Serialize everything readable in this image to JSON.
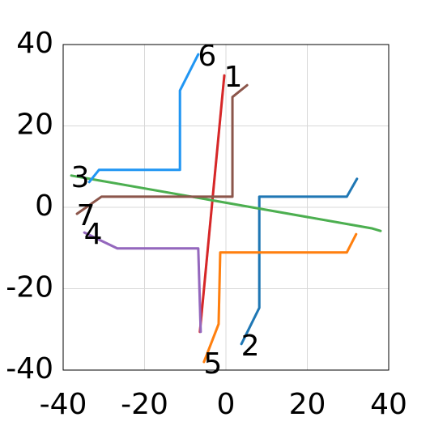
{
  "chart_data": {
    "type": "line",
    "xlim": [
      -40,
      40
    ],
    "ylim": [
      -40,
      40
    ],
    "xticks": [
      -40,
      -20,
      0,
      20,
      40
    ],
    "yticks": [
      -40,
      -20,
      0,
      20,
      40
    ],
    "grid": true,
    "series": [
      {
        "name": "1",
        "color": "#d62728",
        "x": [
          -0.4,
          -6.4
        ],
        "values": [
          32.4,
          -30.6
        ]
      },
      {
        "name": "2",
        "color": "#1f77b4",
        "x": [
          3.8,
          8.2,
          8.2,
          29.7,
          32.2
        ],
        "values": [
          -33.6,
          -24.7,
          2.6,
          2.6,
          7
        ]
      },
      {
        "name": "3",
        "color": "#4caf50",
        "x": [
          -38,
          36,
          38
        ],
        "values": [
          7.8,
          -5.2,
          -5.8
        ]
      },
      {
        "name": "4",
        "color": "#9467bd",
        "x": [
          -34.8,
          -26.7,
          -6.8,
          -6.2
        ],
        "values": [
          -6.2,
          -10.1,
          -10.1,
          -30.6
        ]
      },
      {
        "name": "5",
        "color": "#ff7f0e",
        "x": [
          -5.4,
          -1.8,
          -1.4,
          29.7,
          32
        ],
        "values": [
          -38,
          -28.7,
          -11.1,
          -11.1,
          -6.6
        ]
      },
      {
        "name": "6",
        "color": "#2196f3",
        "x": [
          -6.8,
          -11.3,
          -11.3,
          -31.2,
          -33.6
        ],
        "values": [
          37.6,
          28.7,
          9.2,
          9.2,
          6.2
        ]
      },
      {
        "name": "7",
        "color": "#8c564b",
        "x": [
          -36.6,
          -30.6,
          1.6,
          1.6,
          5.2
        ],
        "values": [
          -1.6,
          2.6,
          2.6,
          27.1,
          30
        ]
      }
    ]
  }
}
